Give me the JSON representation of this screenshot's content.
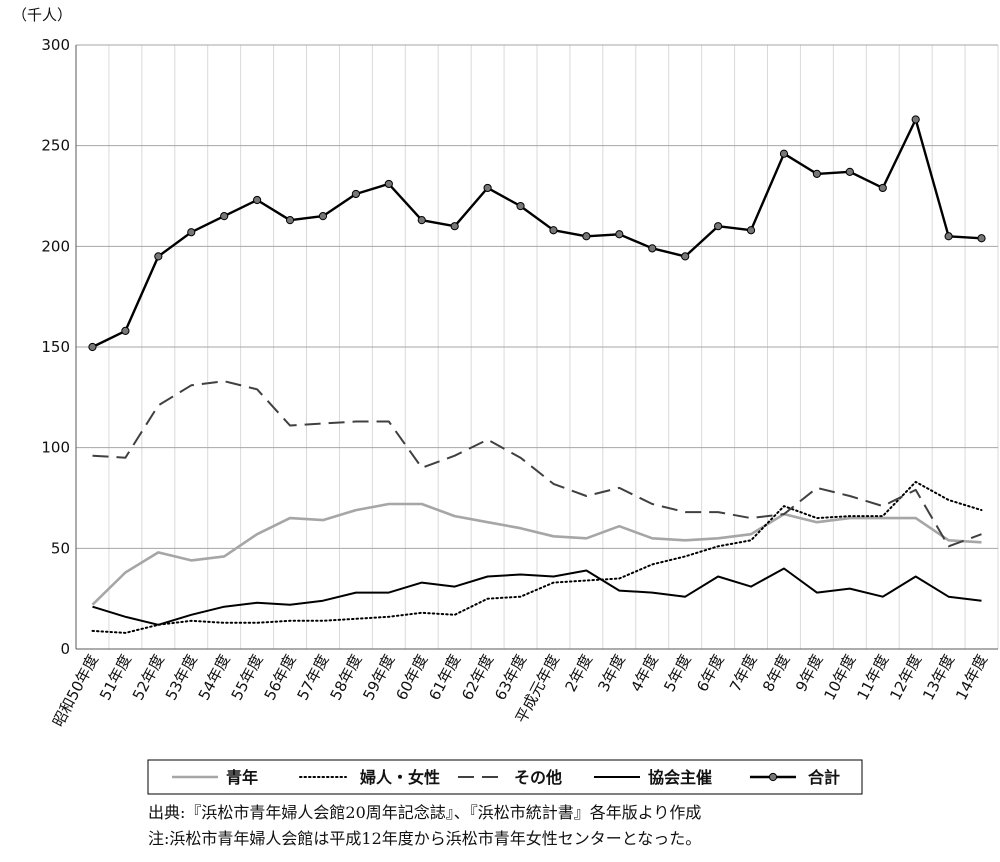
{
  "chart_data": {
    "type": "line",
    "unit_label": "（千人）",
    "ylim": [
      0,
      300
    ],
    "yticks": [
      0,
      50,
      100,
      150,
      200,
      250,
      300
    ],
    "grid": true,
    "legend_position": "bottom",
    "categories": [
      "昭和50年度",
      "51年度",
      "52年度",
      "53年度",
      "54年度",
      "55年度",
      "56年度",
      "57年度",
      "58年度",
      "59年度",
      "60年度",
      "61年度",
      "62年度",
      "63年度",
      "平成元年度",
      "2年度",
      "3年度",
      "4年度",
      "5年度",
      "6年度",
      "7年度",
      "8年度",
      "9年度",
      "10年度",
      "11年度",
      "12年度",
      "13年度",
      "14年度"
    ],
    "series": [
      {
        "name": "青年",
        "style": "solid-gray",
        "color": "#a6a6a6",
        "values": [
          22,
          38,
          48,
          44,
          46,
          57,
          65,
          64,
          69,
          72,
          72,
          66,
          63,
          60,
          56,
          55,
          61,
          55,
          54,
          55,
          57,
          67,
          63,
          65,
          65,
          65,
          54,
          53
        ]
      },
      {
        "name": "婦人・女性",
        "style": "dotted",
        "color": "#000000",
        "values": [
          9,
          8,
          12,
          14,
          13,
          13,
          14,
          14,
          15,
          16,
          18,
          17,
          25,
          26,
          33,
          34,
          35,
          42,
          46,
          51,
          54,
          71,
          65,
          66,
          66,
          83,
          74,
          69
        ]
      },
      {
        "name": "その他",
        "style": "dashed",
        "color": "#404040",
        "values": [
          96,
          95,
          121,
          131,
          133,
          129,
          111,
          112,
          113,
          113,
          90,
          96,
          104,
          95,
          82,
          76,
          80,
          72,
          68,
          68,
          65,
          67,
          80,
          76,
          71,
          79,
          51,
          57
        ]
      },
      {
        "name": "協会主催",
        "style": "solid",
        "color": "#000000",
        "values": [
          21,
          16,
          12,
          17,
          21,
          23,
          22,
          24,
          28,
          28,
          33,
          31,
          36,
          37,
          36,
          39,
          29,
          28,
          26,
          36,
          31,
          40,
          28,
          30,
          26,
          36,
          26,
          24
        ]
      },
      {
        "name": "合計",
        "style": "solid-marker",
        "color": "#000000",
        "values": [
          150,
          158,
          195,
          207,
          215,
          223,
          213,
          215,
          226,
          231,
          213,
          210,
          229,
          220,
          208,
          205,
          206,
          199,
          195,
          210,
          208,
          246,
          236,
          237,
          229,
          263,
          205,
          204
        ]
      }
    ]
  },
  "notes": {
    "source": "出典:『浜松市青年婦人会館20周年記念誌』、『浜松市統計書』各年版より作成",
    "note": "注:浜松市青年婦人会館は平成12年度から浜松市青年女性センターとなった。"
  }
}
